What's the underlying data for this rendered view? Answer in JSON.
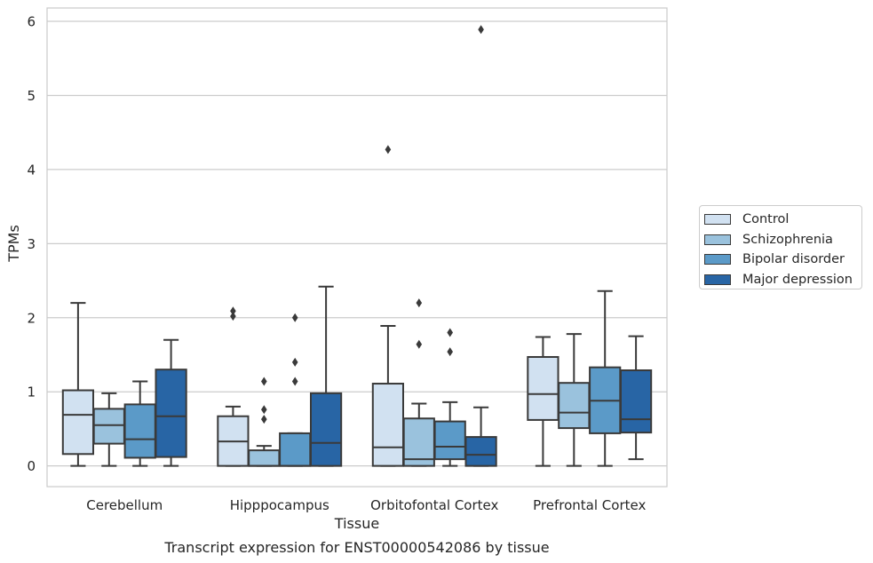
{
  "chart_data": {
    "type": "box",
    "title": "",
    "caption": "Transcript expression for ENST00000542086 by tissue",
    "xlabel": "Tissue",
    "ylabel": "TPMs",
    "ylim": [
      -0.28,
      6.18
    ],
    "yticks": [
      0,
      1,
      2,
      3,
      4,
      5,
      6
    ],
    "grid": "horizontal",
    "legend_position": "right",
    "categories": [
      "Cerebellum",
      "Hipppocampus",
      "Orbitofontal Cortex",
      "Prefrontal Cortex"
    ],
    "series": [
      {
        "name": "Control",
        "color": "#d1e1f1",
        "boxes": [
          {
            "whislo": 0.0,
            "q1": 0.16,
            "med": 0.69,
            "q3": 1.02,
            "whishi": 2.2,
            "fliers": []
          },
          {
            "whislo": 0.0,
            "q1": 0.0,
            "med": 0.33,
            "q3": 0.67,
            "whishi": 0.8,
            "fliers": [
              2.02,
              2.09
            ]
          },
          {
            "whislo": 0.0,
            "q1": 0.0,
            "med": 0.25,
            "q3": 1.11,
            "whishi": 1.89,
            "fliers": [
              4.27
            ]
          },
          {
            "whislo": 0.0,
            "q1": 0.62,
            "med": 0.97,
            "q3": 1.47,
            "whishi": 1.74,
            "fliers": []
          }
        ]
      },
      {
        "name": "Schizophrenia",
        "color": "#9ac2dd",
        "boxes": [
          {
            "whislo": 0.0,
            "q1": 0.3,
            "med": 0.55,
            "q3": 0.77,
            "whishi": 0.98,
            "fliers": []
          },
          {
            "whislo": 0.0,
            "q1": 0.0,
            "med": 0.0,
            "q3": 0.21,
            "whishi": 0.27,
            "fliers": [
              0.63,
              0.76,
              1.14
            ]
          },
          {
            "whislo": 0.0,
            "q1": 0.0,
            "med": 0.09,
            "q3": 0.64,
            "whishi": 0.84,
            "fliers": [
              1.64,
              2.2
            ]
          },
          {
            "whislo": 0.0,
            "q1": 0.51,
            "med": 0.72,
            "q3": 1.12,
            "whishi": 1.78,
            "fliers": []
          }
        ]
      },
      {
        "name": "Bipolar disorder",
        "color": "#5b9ac8",
        "boxes": [
          {
            "whislo": 0.0,
            "q1": 0.11,
            "med": 0.36,
            "q3": 0.83,
            "whishi": 1.14,
            "fliers": []
          },
          {
            "whislo": 0.0,
            "q1": 0.0,
            "med": 0.0,
            "q3": 0.44,
            "whishi": 0.44,
            "fliers": [
              1.14,
              1.4,
              2.0
            ]
          },
          {
            "whislo": 0.0,
            "q1": 0.09,
            "med": 0.26,
            "q3": 0.6,
            "whishi": 0.86,
            "fliers": [
              1.54,
              1.8
            ]
          },
          {
            "whislo": 0.0,
            "q1": 0.44,
            "med": 0.88,
            "q3": 1.33,
            "whishi": 2.36,
            "fliers": []
          }
        ]
      },
      {
        "name": "Major depression",
        "color": "#2865a5",
        "boxes": [
          {
            "whislo": 0.0,
            "q1": 0.12,
            "med": 0.67,
            "q3": 1.3,
            "whishi": 1.7,
            "fliers": []
          },
          {
            "whislo": 0.0,
            "q1": 0.0,
            "med": 0.31,
            "q3": 0.98,
            "whishi": 2.42,
            "fliers": []
          },
          {
            "whislo": 0.0,
            "q1": 0.0,
            "med": 0.15,
            "q3": 0.39,
            "whishi": 0.79,
            "fliers": [
              5.89
            ]
          },
          {
            "whislo": 0.09,
            "q1": 0.45,
            "med": 0.63,
            "q3": 1.29,
            "whishi": 1.75,
            "fliers": []
          }
        ]
      }
    ]
  }
}
